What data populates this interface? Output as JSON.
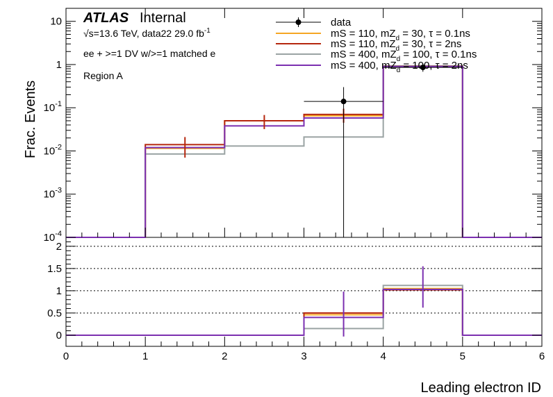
{
  "chart_data": {
    "type": "histogram",
    "atlas_label": "ATLAS",
    "atlas_status": "Internal",
    "energy_text": "√s=13.6 TeV, data22 29.0 fb",
    "energy_sup": "-1",
    "selection_text": "ee + >=1 DV w/>=1 matched e",
    "region_text": "Region A",
    "xlabel": "Leading electron ID",
    "ylabel": "Frac. Events",
    "xlim": [
      0,
      6
    ],
    "x_ticks": [
      "0",
      "1",
      "2",
      "3",
      "4",
      "5",
      "6"
    ],
    "bin_edges": [
      0,
      1,
      2,
      3,
      4,
      5,
      6
    ],
    "main_panel": {
      "yscale": "log",
      "ylim": [
        0.0001,
        20
      ],
      "y_tick_values": [
        0.0001,
        0.001,
        0.01,
        0.1,
        1,
        10
      ],
      "y_tick_labels": [
        {
          "base": "10",
          "exp": "-4"
        },
        {
          "base": "10",
          "exp": "-3"
        },
        {
          "base": "10",
          "exp": "-2"
        },
        {
          "base": "10",
          "exp": "-1"
        },
        {
          "base": "1",
          "exp": ""
        },
        {
          "base": "10",
          "exp": ""
        }
      ],
      "series": [
        {
          "name": "mS = 110, mZ",
          "sub": "d",
          "rest": " = 30, τ = 0.1ns",
          "color": "#f5a623",
          "values": [
            0,
            0.0115,
            0.05,
            0.065,
            0.92,
            0
          ],
          "errors": []
        },
        {
          "name": "mS = 110, mZ",
          "sub": "d",
          "rest": " = 30, τ = 2ns",
          "color": "#b5260d",
          "values": [
            0,
            0.014,
            0.05,
            0.07,
            0.93,
            0
          ],
          "errors": [
            0,
            0.007,
            0.018,
            0.025,
            0.05,
            0
          ]
        },
        {
          "name": "mS = 400, mZ",
          "sub": "d",
          "rest": " = 100, τ = 0.1ns",
          "color": "#9aa3a3",
          "values": [
            0,
            0.0085,
            0.013,
            0.021,
            0.92,
            0
          ],
          "errors": []
        },
        {
          "name": "mS = 400, mZ",
          "sub": "d",
          "rest": " = 100, τ = 2ns",
          "color": "#7b2fb0",
          "values": [
            0,
            0.012,
            0.038,
            0.058,
            0.9,
            0
          ],
          "errors": []
        }
      ],
      "data": {
        "name": "data",
        "color": "#000000",
        "points": [
          {
            "x": 3.5,
            "y": 0.14,
            "yerr_low": 0.14,
            "yerr_high": 0.16,
            "xerr": 0.5
          },
          {
            "x": 4.5,
            "y": 0.86,
            "yerr_low": 0.18,
            "yerr_high": 0.2,
            "xerr": 0.5
          }
        ]
      }
    },
    "ratio_panel": {
      "ylim": [
        -0.25,
        2.2
      ],
      "y_ticks": [
        "0",
        "0.5",
        "1",
        "1.5",
        "2"
      ],
      "y_tick_values": [
        0,
        0.5,
        1,
        1.5,
        2
      ],
      "grid_y": [
        0.5,
        1,
        1.5,
        2
      ],
      "series": [
        {
          "color": "#f5a623",
          "values": [
            0,
            0,
            0,
            0.46,
            1.05,
            0
          ]
        },
        {
          "color": "#b5260d",
          "values": [
            0,
            0,
            0,
            0.5,
            1.02,
            0
          ]
        },
        {
          "color": "#9aa3a3",
          "values": [
            0,
            0,
            0,
            0.15,
            1.12,
            0
          ]
        },
        {
          "color": "#7b2fb0",
          "values": [
            0,
            0,
            0,
            0.4,
            1.03,
            0
          ]
        }
      ],
      "errors": [
        {
          "x": 3.5,
          "color": "#7b2fb0",
          "low": -0.03,
          "high": 0.98
        },
        {
          "x": 4.5,
          "color": "#7b2fb0",
          "low": 0.62,
          "high": 1.55
        }
      ]
    }
  }
}
